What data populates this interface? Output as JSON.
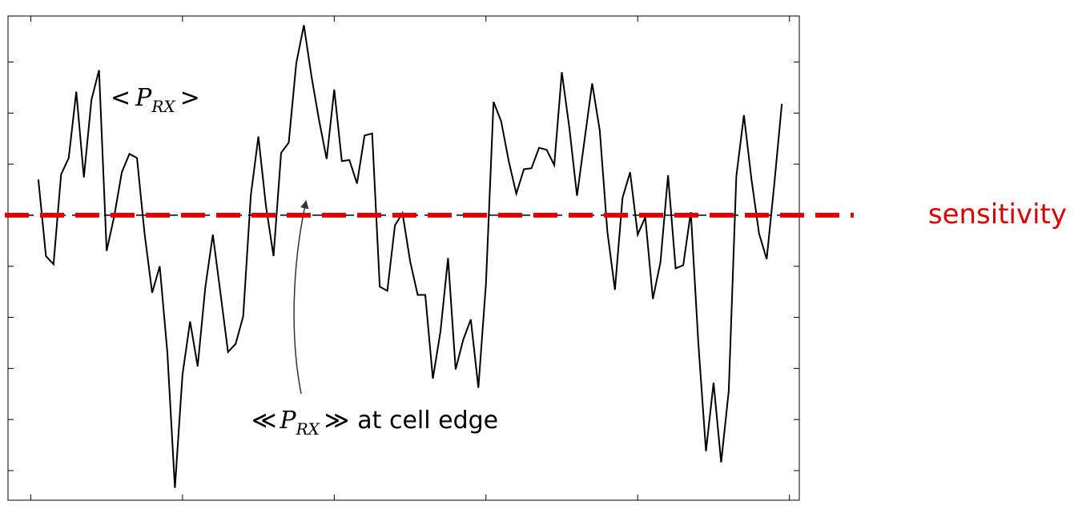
{
  "chart_data": {
    "type": "line",
    "x": [
      1,
      2,
      3,
      4,
      5,
      6,
      7,
      8,
      9,
      10,
      11,
      12,
      13,
      14,
      15,
      16,
      17,
      18,
      19,
      20,
      21,
      22,
      23,
      24,
      25,
      26,
      27,
      28,
      29,
      30,
      31,
      32,
      33,
      34,
      35,
      36,
      37,
      38,
      39,
      40,
      41,
      42,
      43,
      44,
      45,
      46,
      47,
      48,
      49,
      50,
      51,
      52,
      53,
      54,
      55,
      56,
      57,
      58,
      59,
      60,
      61,
      62,
      63,
      64,
      65,
      66,
      67,
      68,
      69,
      70,
      71,
      72,
      73,
      74,
      75,
      76,
      77,
      78,
      79,
      80,
      81,
      82,
      83,
      84,
      85,
      86,
      87,
      88,
      89,
      90,
      91,
      92,
      93,
      94,
      95,
      96,
      97,
      98,
      99
    ],
    "series": [
      {
        "color": "#000000",
        "values": [
          0.35,
          -0.4,
          -0.48,
          0.4,
          0.56,
          1.21,
          0.37,
          1.13,
          1.42,
          -0.35,
          -0.01,
          0.42,
          0.6,
          0.56,
          -0.18,
          -0.76,
          -0.5,
          -1.34,
          -2.67,
          -1.56,
          -1.04,
          -1.48,
          -0.71,
          -0.19,
          -0.76,
          -1.34,
          -1.26,
          -0.99,
          0.19,
          0.77,
          0.09,
          -0.4,
          0.61,
          0.71,
          1.49,
          1.86,
          1.36,
          0.93,
          0.55,
          1.23,
          0.53,
          0.54,
          0.31,
          0.78,
          0.8,
          -0.7,
          -0.74,
          -0.1,
          0.02,
          -0.45,
          -0.78,
          -0.78,
          -1.6,
          -1.14,
          -0.42,
          -1.51,
          -1.22,
          -1.02,
          -1.69,
          -0.67,
          1.11,
          0.92,
          0.53,
          0.21,
          0.45,
          0.46,
          0.66,
          0.64,
          0.49,
          1.4,
          0.85,
          0.19,
          0.74,
          1.29,
          0.83,
          -0.16,
          -0.73,
          0.17,
          0.42,
          -0.19,
          -0.02,
          -0.82,
          -0.46,
          0.39,
          -0.52,
          -0.49,
          0.03,
          -1.26,
          -2.31,
          -1.64,
          -2.42,
          -1.72,
          0.38,
          0.98,
          0.35,
          -0.18,
          -0.43,
          0.3,
          1.09
        ]
      }
    ],
    "xlim": [
      -3,
      101.3
    ],
    "xticks": [
      0,
      20,
      40,
      60,
      80,
      100
    ],
    "ylim": [
      -2.79,
      1.95
    ],
    "yticks": [
      -2.5,
      -2,
      -1.5,
      -1,
      -0.5,
      0,
      0.5,
      1,
      1.5
    ],
    "mean_label": {
      "prefix": "<",
      "symbol": "P",
      "subscript": "RX",
      "suffix": ">"
    },
    "cell_edge_mean": {
      "value": 0,
      "color": "#000000",
      "prefix": "≪",
      "symbol": "P",
      "subscript": "RX",
      "suffix": "≫",
      "text": "at cell edge"
    },
    "sensitivity": {
      "value": 0,
      "color": "#dd0000",
      "label": "sensitivity"
    }
  }
}
